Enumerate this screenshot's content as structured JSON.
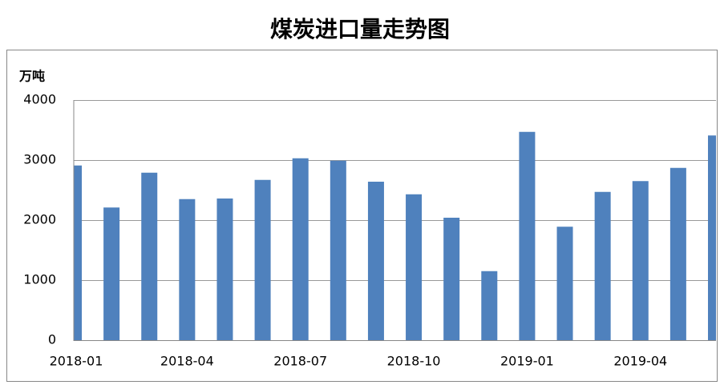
{
  "chart_data": {
    "type": "bar",
    "title": "煤炭进口量走势图",
    "y_label": "万吨",
    "categories": [
      "2018-01",
      null,
      null,
      "2018-04",
      null,
      null,
      "2018-07",
      null,
      null,
      "2018-10",
      null,
      null,
      "2019-01",
      null,
      null,
      "2019-04",
      null,
      null
    ],
    "values": [
      2910,
      2210,
      2790,
      2350,
      2360,
      2670,
      3030,
      2990,
      2640,
      2430,
      2040,
      1150,
      3470,
      1890,
      2470,
      2650,
      2870,
      3410
    ],
    "color": "#4f81bd",
    "ylim": [
      0,
      4000
    ],
    "yticks": [
      0,
      1000,
      2000,
      3000,
      4000
    ],
    "grid": true
  }
}
